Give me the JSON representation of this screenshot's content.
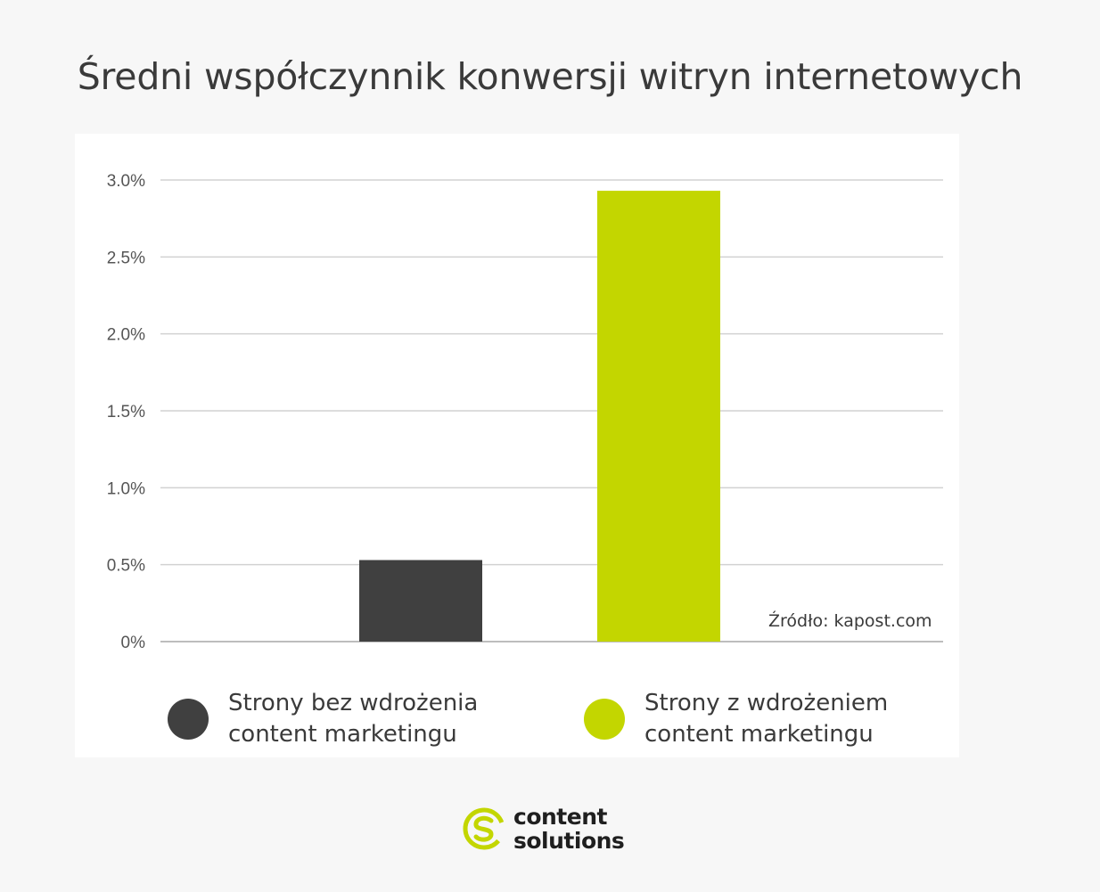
{
  "title": "Średni współczynnik konwersji witryn internetowych",
  "source": "Źródło: kapost.com",
  "legend": [
    {
      "label": "Strony bez wdrożenia\ncontent marketingu",
      "color": "#404040"
    },
    {
      "label": "Strony z wdrożeniem\ncontent marketingu",
      "color": "#c3d600"
    }
  ],
  "logo": {
    "line1": "content",
    "line2": "solutions",
    "color": "#c3d600"
  },
  "chart_data": {
    "type": "bar",
    "categories": [
      "Strony bez wdrożenia content marketingu",
      "Strony z wdrożeniem content marketingu"
    ],
    "values": [
      0.53,
      2.93
    ],
    "colors": [
      "#404040",
      "#c3d600"
    ],
    "ylim": [
      0,
      3.0
    ],
    "yticks": [
      {
        "value": 3.0,
        "label": "3.0%"
      },
      {
        "value": 2.5,
        "label": "2.5%"
      },
      {
        "value": 2.0,
        "label": "2.0%"
      },
      {
        "value": 1.5,
        "label": "1.5%"
      },
      {
        "value": 1.0,
        "label": "1.0%"
      },
      {
        "value": 0.5,
        "label": "0.5%"
      },
      {
        "value": 0,
        "label": "0%"
      }
    ],
    "grid": true,
    "legend_position": "bottom"
  }
}
